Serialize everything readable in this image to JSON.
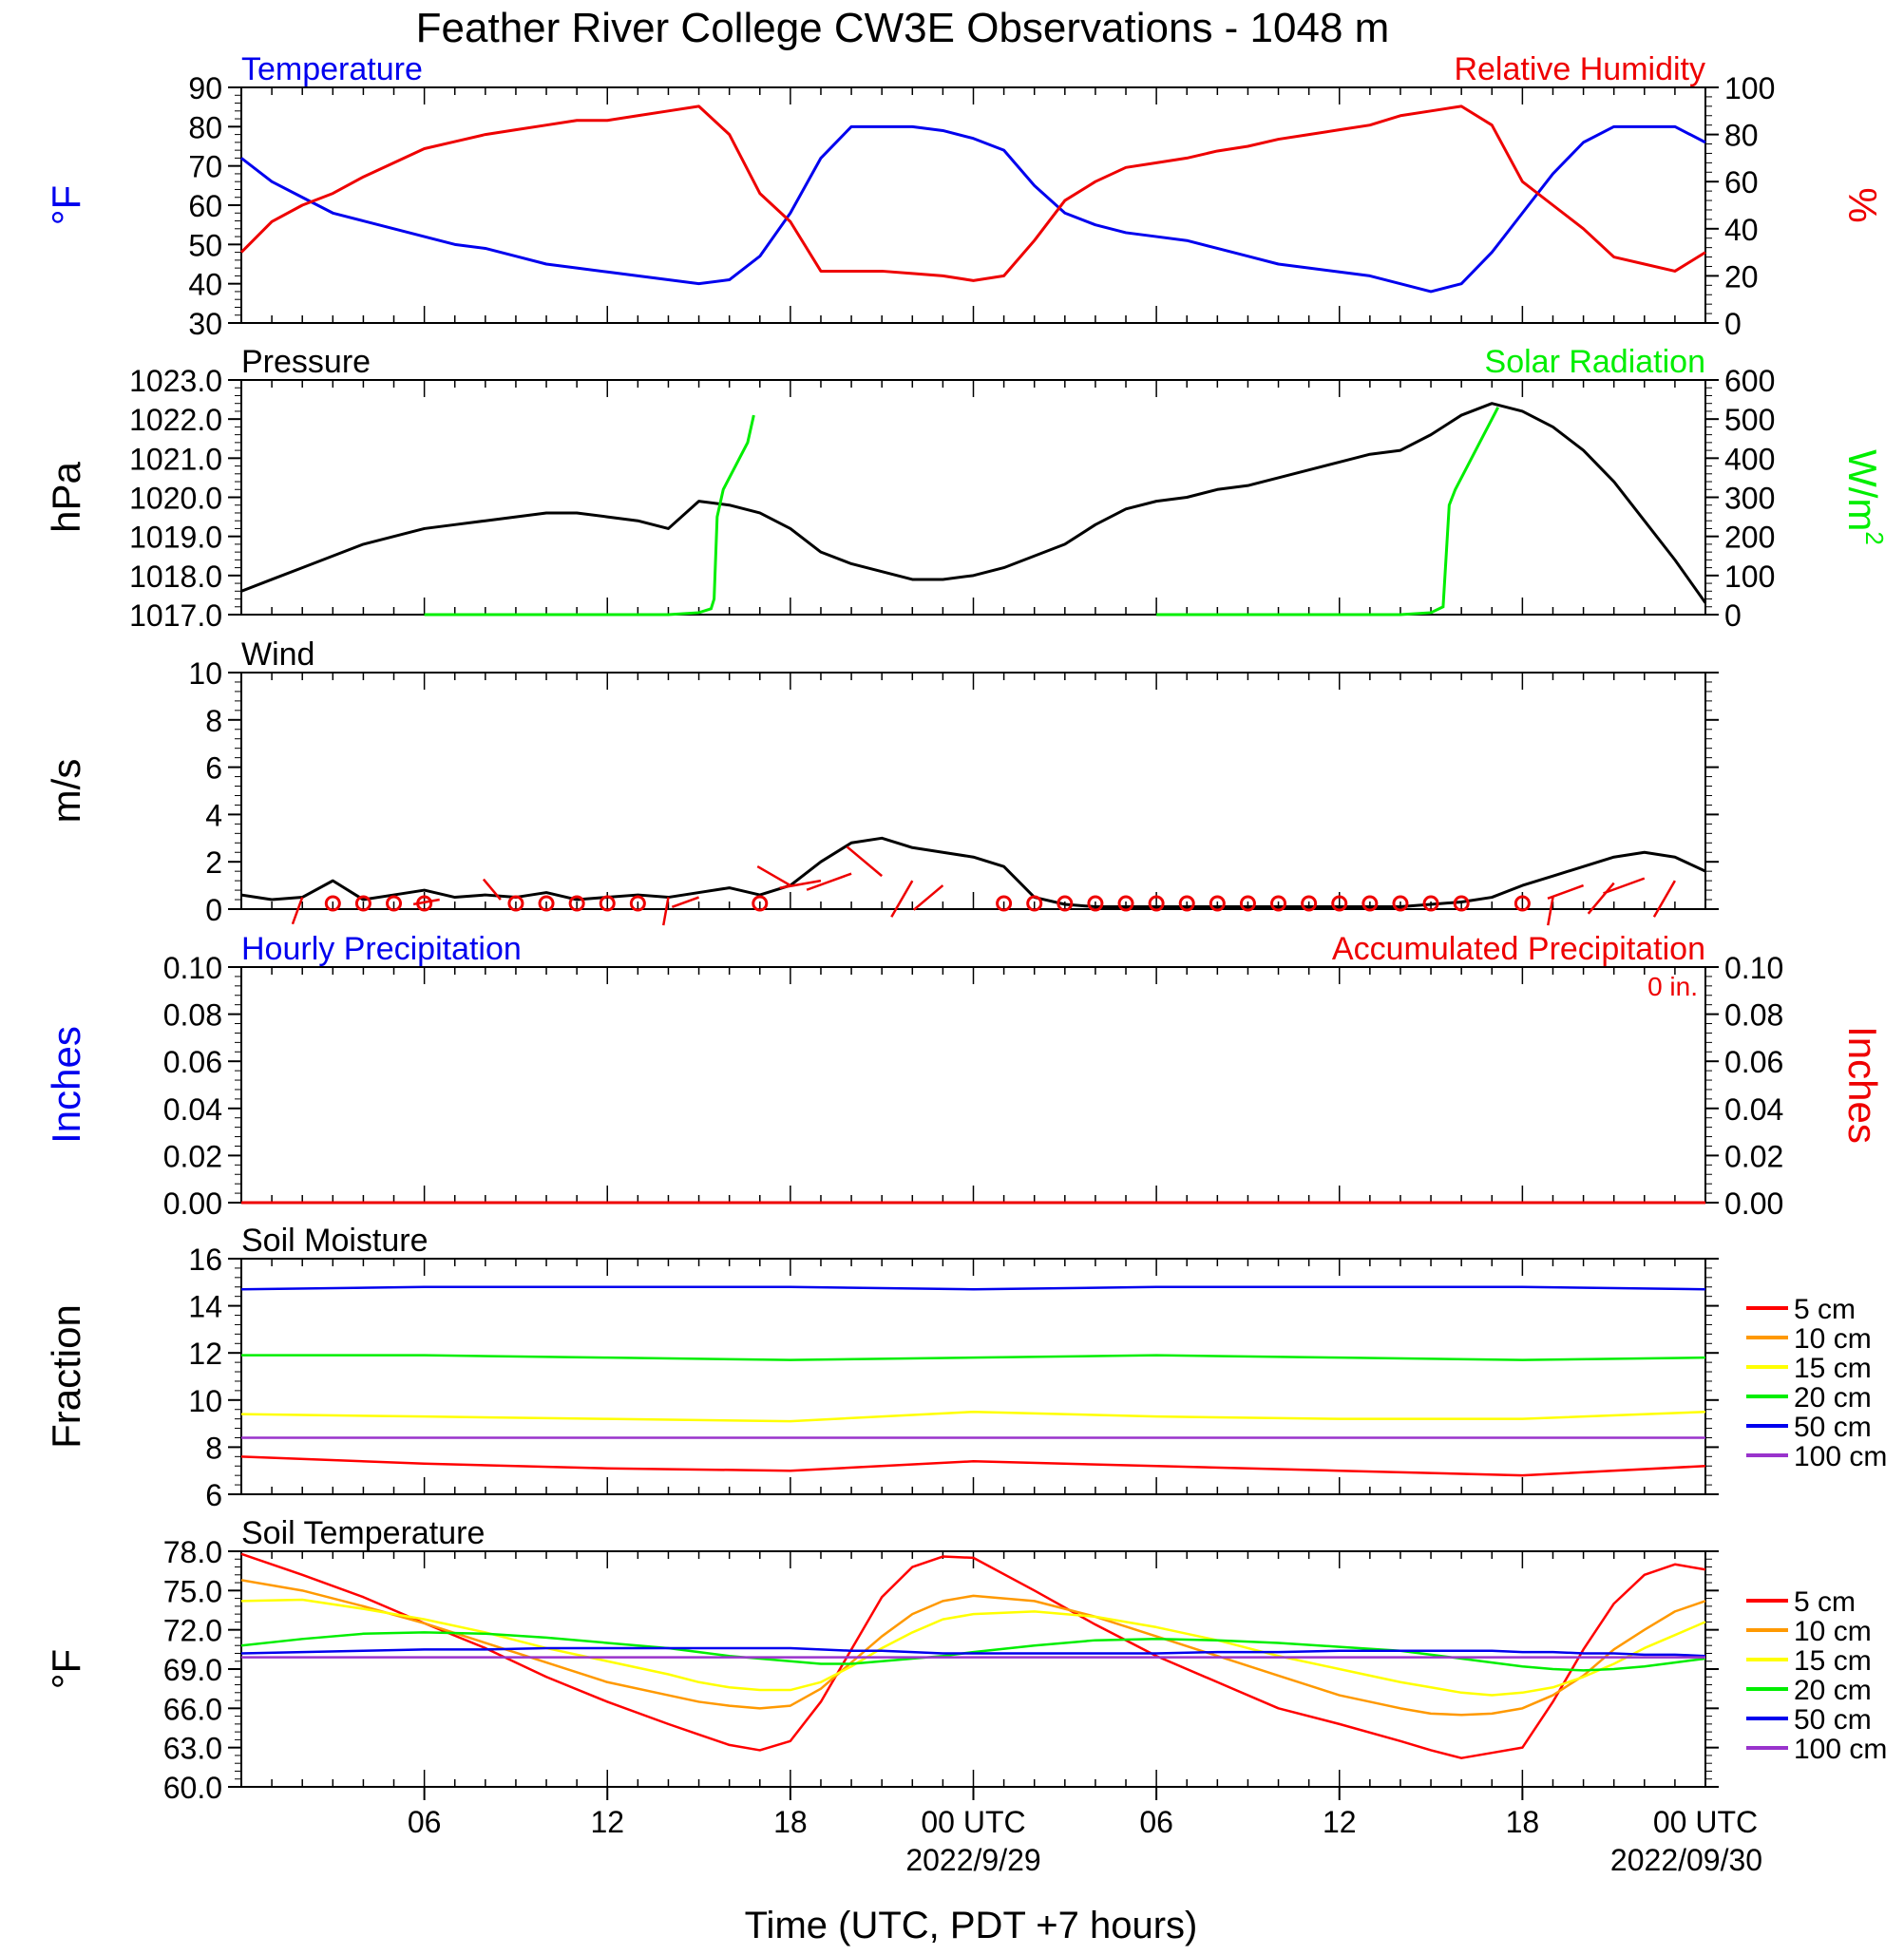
{
  "title": "Feather River College CW3E Observations - 1048 m",
  "xlabel": "Time (UTC, PDT +7 hours)",
  "x_ticks": [
    "06",
    "12",
    "18",
    "00 UTC",
    "06",
    "12",
    "18",
    "00 UTC"
  ],
  "x_dates": [
    "2022/9/29",
    "2022/09/30"
  ],
  "colors": {
    "temperature": "#0000ee",
    "humidity": "#ee0000",
    "solar": "#00ee00",
    "pressure": "#000000",
    "wind": "#000000",
    "barbs": "#ee0000",
    "cm5": "#ff0000",
    "cm10": "#ff9900",
    "cm15": "#ffff00",
    "cm20": "#00ee00",
    "cm50": "#0000ee",
    "cm100": "#9933cc"
  },
  "legend_labels": [
    "5 cm",
    "10 cm",
    "15 cm",
    "20 cm",
    "50 cm",
    "100 cm"
  ],
  "chart_data": [
    {
      "type": "line",
      "panel": "temperature_humidity",
      "left_title": "Temperature",
      "right_title": "Relative Humidity",
      "ylabel": "°F",
      "y2label": "%",
      "ylim": [
        30,
        90
      ],
      "y_ticks": [
        "30",
        "40",
        "50",
        "60",
        "70",
        "80",
        "90"
      ],
      "y2lim": [
        0,
        100
      ],
      "y2_ticks": [
        "0",
        "20",
        "40",
        "60",
        "80",
        "100"
      ],
      "x_hours": [
        0,
        1,
        2,
        3,
        4,
        5,
        6,
        7,
        8,
        9,
        10,
        11,
        12,
        13,
        14,
        15,
        16,
        17,
        18,
        19,
        20,
        21,
        22,
        23,
        24,
        25,
        26,
        27,
        28,
        29,
        30,
        31,
        32,
        33,
        34,
        35,
        36,
        37,
        38,
        39,
        40,
        41,
        42,
        43,
        44,
        45,
        46,
        47,
        48
      ],
      "series": [
        {
          "name": "Temperature",
          "values": [
            72,
            66,
            62,
            58,
            56,
            54,
            52,
            50,
            49,
            47,
            45,
            44,
            43,
            42,
            41,
            40,
            41,
            47,
            58,
            72,
            80,
            80,
            80,
            79,
            77,
            74,
            65,
            58,
            55,
            53,
            52,
            51,
            49,
            47,
            45,
            44,
            43,
            42,
            40,
            38,
            40,
            48,
            58,
            68,
            76,
            80,
            80,
            80,
            76
          ]
        },
        {
          "name": "Relative Humidity",
          "values": [
            30,
            43,
            50,
            55,
            62,
            68,
            74,
            77,
            80,
            82,
            84,
            86,
            86,
            88,
            90,
            92,
            80,
            55,
            43,
            22,
            22,
            22,
            21,
            20,
            18,
            20,
            35,
            52,
            60,
            66,
            68,
            70,
            73,
            75,
            78,
            80,
            82,
            84,
            88,
            90,
            92,
            84,
            60,
            50,
            40,
            28,
            25,
            22,
            30
          ]
        }
      ]
    },
    {
      "type": "line",
      "panel": "pressure_solar",
      "left_title": "Pressure",
      "right_title": "Solar Radiation",
      "ylabel": "hPa",
      "y2label": "W/m",
      "y2label_sup": "2",
      "ylim": [
        1017.0,
        1023.0
      ],
      "y_ticks": [
        "1017.0",
        "1018.0",
        "1019.0",
        "1020.0",
        "1021.0",
        "1022.0",
        "1023.0"
      ],
      "y2lim": [
        0,
        600
      ],
      "y2_ticks": [
        "0",
        "100",
        "200",
        "300",
        "400",
        "500",
        "600"
      ],
      "x_hours": [
        0,
        1,
        2,
        3,
        4,
        5,
        6,
        7,
        8,
        9,
        10,
        11,
        12,
        13,
        14,
        15,
        16,
        17,
        18,
        19,
        20,
        21,
        22,
        23,
        24,
        25,
        26,
        27,
        28,
        29,
        30,
        31,
        32,
        33,
        34,
        35,
        36,
        37,
        38,
        39,
        40,
        41,
        42,
        43,
        44,
        45,
        46,
        47,
        48
      ],
      "series": [
        {
          "name": "Pressure",
          "values": [
            1017.6,
            1017.9,
            1018.2,
            1018.5,
            1018.8,
            1019.0,
            1019.2,
            1019.3,
            1019.4,
            1019.5,
            1019.6,
            1019.6,
            1019.5,
            1019.4,
            1019.2,
            1019.9,
            1019.8,
            1019.6,
            1019.2,
            1018.6,
            1018.3,
            1018.1,
            1017.9,
            1017.9,
            1018.0,
            1018.2,
            1018.5,
            1018.8,
            1019.3,
            1019.7,
            1019.9,
            1020.0,
            1020.2,
            1020.3,
            1020.5,
            1020.7,
            1020.9,
            1021.1,
            1021.2,
            1021.6,
            1022.1,
            1022.4,
            1022.2,
            1021.8,
            1021.2,
            1020.4,
            1019.4,
            1018.4,
            1017.3
          ]
        }
      ],
      "solar_x_hours": [
        6,
        8,
        10,
        12,
        14,
        15,
        15.4,
        15.5,
        15.6,
        15.8,
        16.2,
        16.6,
        16.8
      ],
      "solar_values": [
        0,
        0,
        0,
        0,
        0,
        5,
        15,
        40,
        250,
        320,
        380,
        440,
        510
      ],
      "solar2_x_hours": [
        30,
        32,
        34,
        36,
        38,
        39,
        39.4,
        39.6,
        39.8,
        40.2,
        40.6,
        41,
        41.2
      ],
      "solar2_values": [
        0,
        0,
        0,
        0,
        0,
        5,
        20,
        280,
        320,
        380,
        440,
        500,
        530
      ]
    },
    {
      "type": "line",
      "panel": "wind",
      "left_title": "Wind",
      "ylabel": "m/s",
      "ylim": [
        0,
        10
      ],
      "y_ticks": [
        "0",
        "2",
        "4",
        "6",
        "8",
        "10"
      ],
      "x_hours": [
        0,
        1,
        2,
        3,
        4,
        5,
        6,
        7,
        8,
        9,
        10,
        11,
        12,
        13,
        14,
        15,
        16,
        17,
        18,
        19,
        20,
        21,
        22,
        23,
        24,
        25,
        26,
        27,
        28,
        29,
        30,
        31,
        32,
        33,
        34,
        35,
        36,
        37,
        38,
        39,
        40,
        41,
        42,
        43,
        44,
        45,
        46,
        47,
        48
      ],
      "series": [
        {
          "name": "Wind",
          "values": [
            0.6,
            0.4,
            0.5,
            1.2,
            0.4,
            0.6,
            0.8,
            0.5,
            0.6,
            0.5,
            0.7,
            0.4,
            0.5,
            0.6,
            0.5,
            0.7,
            0.9,
            0.6,
            1.0,
            2.0,
            2.8,
            3.0,
            2.6,
            2.4,
            2.2,
            1.8,
            0.5,
            0.2,
            0.1,
            0.1,
            0.1,
            0.1,
            0.1,
            0.1,
            0.1,
            0.1,
            0.1,
            0.1,
            0.1,
            0.2,
            0.3,
            0.5,
            1.0,
            1.4,
            1.8,
            2.2,
            2.4,
            2.2,
            1.6
          ]
        }
      ],
      "calm_circle_hours": [
        3,
        4,
        5,
        6,
        9,
        10,
        11,
        12,
        13,
        17,
        25,
        26,
        27,
        28,
        29,
        30,
        31,
        32,
        33,
        34,
        35,
        36,
        37,
        38,
        39,
        40,
        42
      ],
      "barbs": [
        {
          "x": 2,
          "speed": 1.0,
          "dir": 200
        },
        {
          "x": 6.5,
          "speed": 0.8,
          "dir": 260
        },
        {
          "x": 8.5,
          "speed": 0.8,
          "dir": 320
        },
        {
          "x": 14,
          "speed": 1.0,
          "dir": 190
        },
        {
          "x": 15,
          "speed": 1.0,
          "dir": 250
        },
        {
          "x": 18,
          "speed": 2.0,
          "dir": 300
        },
        {
          "x": 19,
          "speed": 2.4,
          "dir": 260
        },
        {
          "x": 20,
          "speed": 3.0,
          "dir": 250
        },
        {
          "x": 21,
          "speed": 2.8,
          "dir": 310
        },
        {
          "x": 22,
          "speed": 2.4,
          "dir": 210
        },
        {
          "x": 23,
          "speed": 2.0,
          "dir": 230
        },
        {
          "x": 43,
          "speed": 1.0,
          "dir": 190
        },
        {
          "x": 44,
          "speed": 2.0,
          "dir": 250
        },
        {
          "x": 45,
          "speed": 2.2,
          "dir": 220
        },
        {
          "x": 46,
          "speed": 2.6,
          "dir": 250
        },
        {
          "x": 47,
          "speed": 2.4,
          "dir": 210
        }
      ]
    },
    {
      "type": "line",
      "panel": "precipitation",
      "left_title": "Hourly Precipitation",
      "right_title": "Accumulated Precipitation",
      "accum_label": "0 in.",
      "ylabel": "Inches",
      "y2label": "Inches",
      "ylim": [
        0,
        0.1
      ],
      "y_ticks": [
        "0.00",
        "0.02",
        "0.04",
        "0.06",
        "0.08",
        "0.10"
      ],
      "y2_ticks": [
        "0.00",
        "0.02",
        "0.04",
        "0.06",
        "0.08",
        "0.10"
      ],
      "x_hours": [
        0,
        48
      ],
      "series": [
        {
          "name": "Hourly Precipitation",
          "values": [
            0,
            0
          ]
        },
        {
          "name": "Accumulated Precipitation",
          "values": [
            0,
            0
          ]
        }
      ]
    },
    {
      "type": "line",
      "panel": "soil_moisture",
      "left_title": "Soil Moisture",
      "ylabel": "Fraction",
      "ylim": [
        6,
        16
      ],
      "y_ticks": [
        "6",
        "8",
        "10",
        "12",
        "14",
        "16"
      ],
      "x_hours": [
        0,
        6,
        12,
        18,
        24,
        30,
        36,
        42,
        48
      ],
      "series": [
        {
          "name": "5 cm",
          "values": [
            7.6,
            7.3,
            7.1,
            7.0,
            7.4,
            7.2,
            7.0,
            6.8,
            7.2
          ]
        },
        {
          "name": "15 cm",
          "values": [
            9.4,
            9.3,
            9.2,
            9.1,
            9.5,
            9.3,
            9.2,
            9.2,
            9.5
          ]
        },
        {
          "name": "20 cm",
          "values": [
            11.9,
            11.9,
            11.8,
            11.7,
            11.8,
            11.9,
            11.8,
            11.7,
            11.8
          ]
        },
        {
          "name": "50 cm",
          "values": [
            14.7,
            14.8,
            14.8,
            14.8,
            14.7,
            14.8,
            14.8,
            14.8,
            14.7
          ]
        },
        {
          "name": "100 cm",
          "values": [
            8.4,
            8.4,
            8.4,
            8.4,
            8.4,
            8.4,
            8.4,
            8.4,
            8.4
          ]
        }
      ]
    },
    {
      "type": "line",
      "panel": "soil_temperature",
      "left_title": "Soil Temperature",
      "ylabel": "°F",
      "ylim": [
        60,
        78
      ],
      "y_ticks": [
        "60.0",
        "63.0",
        "66.0",
        "69.0",
        "72.0",
        "75.0",
        "78.0"
      ],
      "x_hours": [
        0,
        2,
        4,
        6,
        8,
        10,
        12,
        14,
        15,
        16,
        17,
        18,
        19,
        20,
        21,
        22,
        23,
        24,
        26,
        28,
        30,
        32,
        34,
        36,
        38,
        39,
        40,
        41,
        42,
        43,
        44,
        45,
        46,
        47,
        48
      ],
      "series": [
        {
          "name": "5 cm",
          "values": [
            77.8,
            76.2,
            74.5,
            72.5,
            70.6,
            68.4,
            66.5,
            64.8,
            64.0,
            63.2,
            62.8,
            63.5,
            66.5,
            70.5,
            74.5,
            76.8,
            77.6,
            77.5,
            75.0,
            72.4,
            70.0,
            68.0,
            66.0,
            64.8,
            63.5,
            62.8,
            62.2,
            62.6,
            63.0,
            66.5,
            70.5,
            74.0,
            76.2,
            77.0,
            76.6
          ]
        },
        {
          "name": "10 cm",
          "values": [
            75.8,
            75.0,
            73.8,
            72.5,
            71.0,
            69.5,
            68.0,
            67.0,
            66.5,
            66.2,
            66.0,
            66.2,
            67.5,
            69.5,
            71.5,
            73.2,
            74.2,
            74.6,
            74.2,
            73.0,
            71.5,
            70.0,
            68.5,
            67.0,
            66.0,
            65.6,
            65.5,
            65.6,
            66.0,
            67.0,
            68.5,
            70.5,
            72.0,
            73.4,
            74.2
          ]
        },
        {
          "name": "15 cm",
          "values": [
            74.2,
            74.3,
            73.6,
            72.8,
            71.8,
            70.6,
            69.6,
            68.6,
            68.0,
            67.6,
            67.4,
            67.4,
            68.0,
            69.2,
            70.6,
            71.8,
            72.8,
            73.2,
            73.4,
            73.0,
            72.2,
            71.2,
            70.0,
            69.0,
            68.0,
            67.6,
            67.2,
            67.0,
            67.2,
            67.6,
            68.4,
            69.4,
            70.6,
            71.6,
            72.6
          ]
        },
        {
          "name": "20 cm",
          "values": [
            70.8,
            71.3,
            71.7,
            71.8,
            71.7,
            71.4,
            71.0,
            70.6,
            70.3,
            70.0,
            69.8,
            69.6,
            69.4,
            69.4,
            69.6,
            69.8,
            70.0,
            70.3,
            70.8,
            71.2,
            71.3,
            71.2,
            71.0,
            70.7,
            70.4,
            70.1,
            69.8,
            69.5,
            69.2,
            69.0,
            68.9,
            69.0,
            69.2,
            69.5,
            69.8
          ]
        },
        {
          "name": "50 cm",
          "values": [
            70.2,
            70.3,
            70.4,
            70.5,
            70.5,
            70.6,
            70.6,
            70.6,
            70.6,
            70.6,
            70.6,
            70.6,
            70.5,
            70.4,
            70.4,
            70.3,
            70.2,
            70.2,
            70.2,
            70.2,
            70.2,
            70.3,
            70.3,
            70.4,
            70.4,
            70.4,
            70.4,
            70.4,
            70.3,
            70.3,
            70.2,
            70.2,
            70.1,
            70.1,
            70.0
          ]
        },
        {
          "name": "100 cm",
          "values": [
            69.9,
            69.9,
            69.9,
            69.9,
            69.9,
            69.9,
            69.9,
            69.9,
            69.9,
            69.9,
            69.9,
            69.9,
            69.9,
            69.9,
            69.9,
            69.9,
            69.9,
            69.9,
            69.9,
            69.9,
            69.9,
            69.9,
            69.9,
            69.9,
            69.9,
            69.9,
            69.9,
            69.9,
            69.9,
            69.9,
            69.9,
            69.9,
            69.9,
            69.9,
            69.9
          ]
        }
      ]
    }
  ]
}
